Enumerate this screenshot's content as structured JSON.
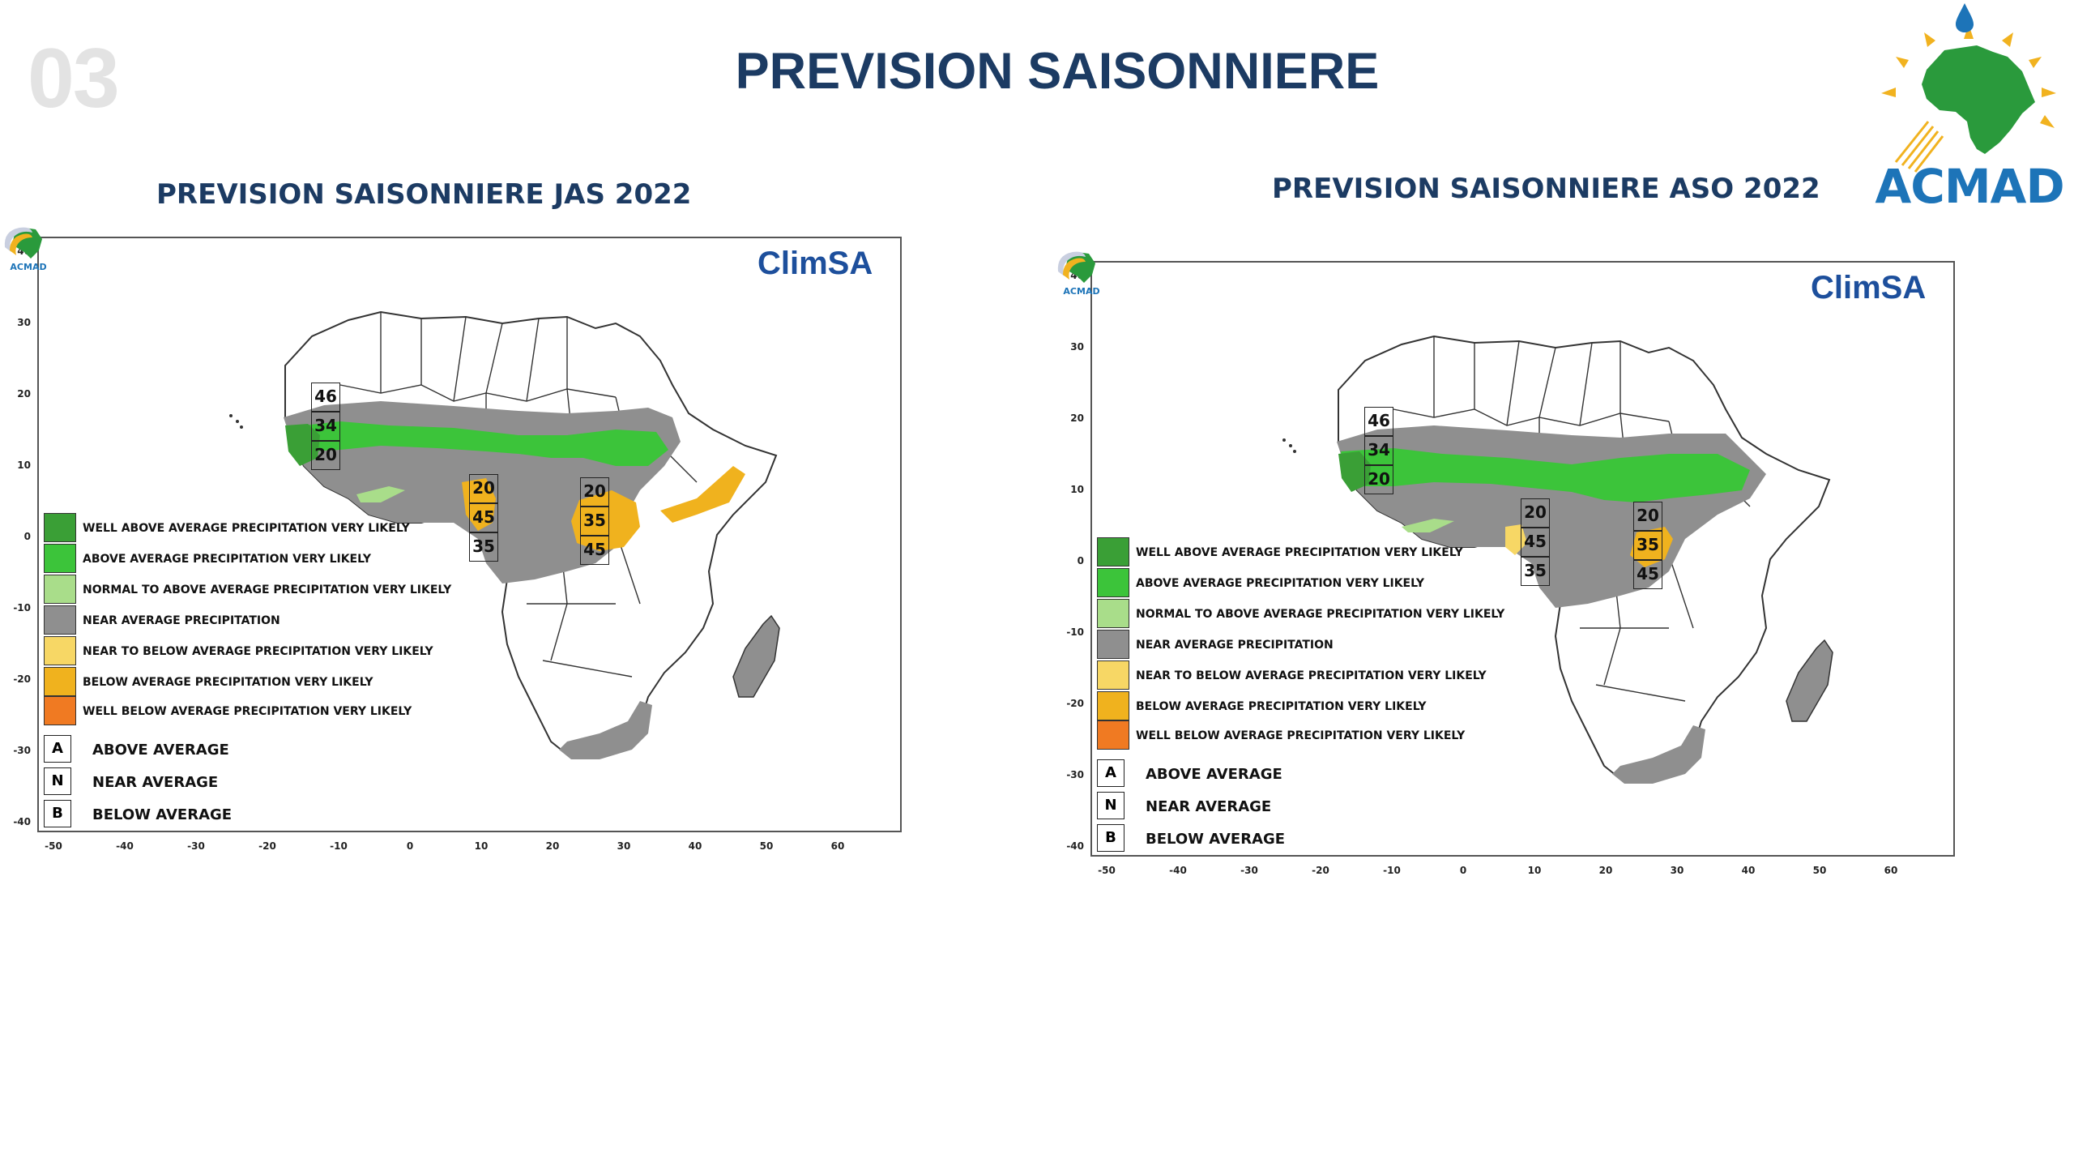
{
  "slide_number": "03",
  "title": "PREVISION SAISONNIERE",
  "logo_text": "ACMAD",
  "brand_text": "ClimSA",
  "mini_logo_text": "ACMAD",
  "colors": {
    "title": "#1c3b63",
    "well_above": "#3a9f36",
    "above": "#3cc43a",
    "normal_to_above": "#a9dd8a",
    "near": "#8f8f8f",
    "near_to_below": "#f7d765",
    "below": "#f0b21e",
    "well_below": "#f07a22"
  },
  "axes": {
    "lat_ticks": [
      "40",
      "30",
      "20",
      "10",
      "0",
      "-10",
      "-20",
      "-30",
      "-40"
    ],
    "lon_ticks": [
      "-50",
      "-40",
      "-30",
      "-20",
      "-10",
      "0",
      "10",
      "20",
      "30",
      "40",
      "50",
      "60"
    ]
  },
  "legend": [
    {
      "label": "WELL ABOVE AVERAGE PRECIPITATION VERY LIKELY",
      "color": "#3a9f36"
    },
    {
      "label": "ABOVE AVERAGE PRECIPITATION VERY LIKELY",
      "color": "#3cc43a"
    },
    {
      "label": "NORMAL TO ABOVE AVERAGE PRECIPITATION VERY LIKELY",
      "color": "#a9dd8a"
    },
    {
      "label": "NEAR AVERAGE PRECIPITATION",
      "color": "#8f8f8f"
    },
    {
      "label": "NEAR  TO BELOW AVERAGE PRECIPITATION VERY LIKELY",
      "color": "#f7d765"
    },
    {
      "label": "BELOW  AVERAGE PRECIPITATION VERY LIKELY",
      "color": "#f0b21e"
    },
    {
      "label": "WELL BELOW AVERAGE PRECIPITATION VERY LIKELY",
      "color": "#f07a22"
    }
  ],
  "key": [
    {
      "letter": "A",
      "label": "ABOVE AVERAGE"
    },
    {
      "letter": "N",
      "label": "NEAR AVERAGE"
    },
    {
      "letter": "B",
      "label": "BELOW AVERAGE"
    }
  ],
  "maps": [
    {
      "title": "PREVISION SAISONNIERE JAS 2022",
      "probabilities": [
        {
          "values": [
            "46",
            "34",
            "20"
          ]
        },
        {
          "values": [
            "20",
            "45",
            "35"
          ]
        },
        {
          "values": [
            "20",
            "35",
            "45"
          ]
        }
      ]
    },
    {
      "title": "PREVISION SAISONNIERE ASO 2022",
      "probabilities": [
        {
          "values": [
            "46",
            "34",
            "20"
          ]
        },
        {
          "values": [
            "20",
            "45",
            "35"
          ]
        },
        {
          "values": [
            "20",
            "35",
            "45"
          ]
        }
      ]
    }
  ]
}
